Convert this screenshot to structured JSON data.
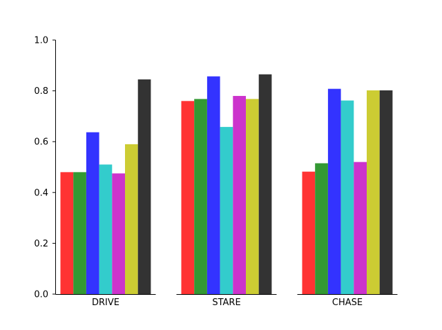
{
  "chart_data": {
    "type": "bar",
    "title": "",
    "xlabel": "",
    "ylabel": "",
    "ylim": [
      0,
      1.0
    ],
    "yticks": [
      "0.0",
      "0.2",
      "0.4",
      "0.6",
      "0.8",
      "1.0"
    ],
    "grid": false,
    "legend": "none",
    "panels": [
      {
        "category": "DRIVE",
        "values": [
          0.48,
          0.48,
          0.637,
          0.51,
          0.475,
          0.59,
          0.845
        ]
      },
      {
        "category": "STARE",
        "values": [
          0.76,
          0.768,
          0.857,
          0.658,
          0.78,
          0.768,
          0.865
        ]
      },
      {
        "category": "CHASE",
        "values": [
          0.482,
          0.515,
          0.808,
          0.762,
          0.52,
          0.802,
          0.802
        ]
      }
    ],
    "series_colors": [
      "#ff3333",
      "#339933",
      "#3333ff",
      "#33cccc",
      "#cc33cc",
      "#cccc33",
      "#333333"
    ]
  }
}
